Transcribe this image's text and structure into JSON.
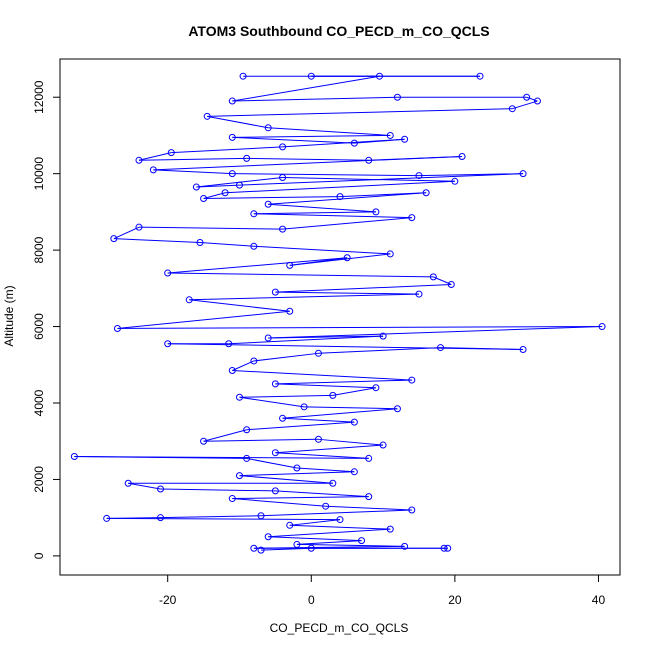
{
  "chart_data": {
    "type": "line",
    "title": "ATOM3 Southbound CO_PECD_m_CO_QCLS",
    "xlabel": "CO_PECD_m_CO_QCLS",
    "ylabel": "Altitude (m)",
    "xlim": [
      -35,
      43
    ],
    "ylim": [
      -500,
      13000
    ],
    "xticks": [
      -20,
      0,
      20,
      40
    ],
    "yticks": [
      0,
      2000,
      4000,
      6000,
      8000,
      10000,
      12000
    ],
    "xtick_labels": [
      "-20",
      "0",
      "20",
      "40"
    ],
    "ytick_labels": [
      "0",
      "2000",
      "4000",
      "6000",
      "8000",
      "10000",
      "12000"
    ],
    "grid": false,
    "legend": "none",
    "series": [
      {
        "color": "#0000ff",
        "marker": "open-circle",
        "points": [
          [
            -9.5,
            12550
          ],
          [
            23.5,
            12550
          ],
          [
            0,
            12550
          ],
          [
            9.5,
            12550
          ],
          [
            -11,
            11900
          ],
          [
            12,
            12000
          ],
          [
            30,
            12000
          ],
          [
            31.5,
            11900
          ],
          [
            28,
            11700
          ],
          [
            -14.5,
            11500
          ],
          [
            -6,
            11200
          ],
          [
            11,
            11000
          ],
          [
            -11,
            10950
          ],
          [
            6,
            10800
          ],
          [
            13,
            10900
          ],
          [
            -4,
            10700
          ],
          [
            -19.5,
            10550
          ],
          [
            -24,
            10350
          ],
          [
            -9,
            10400
          ],
          [
            8,
            10350
          ],
          [
            21,
            10450
          ],
          [
            -22,
            10100
          ],
          [
            -11,
            10000
          ],
          [
            15,
            9950
          ],
          [
            29.5,
            10000
          ],
          [
            -10,
            9700
          ],
          [
            -16,
            9650
          ],
          [
            -4,
            9900
          ],
          [
            20,
            9800
          ],
          [
            -12,
            9500
          ],
          [
            -15,
            9350
          ],
          [
            4,
            9400
          ],
          [
            16,
            9500
          ],
          [
            -6,
            9200
          ],
          [
            9,
            9000
          ],
          [
            -8,
            8950
          ],
          [
            14,
            8850
          ],
          [
            -4,
            8550
          ],
          [
            -24,
            8600
          ],
          [
            -27.5,
            8300
          ],
          [
            -15.5,
            8200
          ],
          [
            -8,
            8100
          ],
          [
            11,
            7900
          ],
          [
            -3,
            7600
          ],
          [
            5,
            7800
          ],
          [
            -20,
            7400
          ],
          [
            17,
            7300
          ],
          [
            19.5,
            7100
          ],
          [
            -5,
            6900
          ],
          [
            15,
            6850
          ],
          [
            -17,
            6700
          ],
          [
            -3,
            6400
          ],
          [
            -27,
            5950
          ],
          [
            40.5,
            6000
          ],
          [
            -6,
            5700
          ],
          [
            10,
            5750
          ],
          [
            -11.5,
            5550
          ],
          [
            -20,
            5550
          ],
          [
            29.5,
            5400
          ],
          [
            18,
            5450
          ],
          [
            1,
            5300
          ],
          [
            -8,
            5100
          ],
          [
            -11,
            4850
          ],
          [
            14,
            4600
          ],
          [
            -5,
            4500
          ],
          [
            9,
            4400
          ],
          [
            3,
            4200
          ],
          [
            -10,
            4150
          ],
          [
            -1,
            3900
          ],
          [
            12,
            3850
          ],
          [
            -4,
            3600
          ],
          [
            6,
            3500
          ],
          [
            -9,
            3300
          ],
          [
            -15,
            3000
          ],
          [
            1,
            3050
          ],
          [
            10,
            2900
          ],
          [
            -5,
            2700
          ],
          [
            8,
            2550
          ],
          [
            -33,
            2600
          ],
          [
            -9,
            2550
          ],
          [
            -2,
            2300
          ],
          [
            6,
            2200
          ],
          [
            -10,
            2100
          ],
          [
            3,
            1900
          ],
          [
            -25.5,
            1900
          ],
          [
            -21,
            1750
          ],
          [
            -5,
            1700
          ],
          [
            8,
            1550
          ],
          [
            -11,
            1500
          ],
          [
            2,
            1300
          ],
          [
            14,
            1200
          ],
          [
            -7,
            1050
          ],
          [
            -21,
            1000
          ],
          [
            -28.5,
            980
          ],
          [
            4,
            950
          ],
          [
            -3,
            800
          ],
          [
            11,
            700
          ],
          [
            -6,
            500
          ],
          [
            7,
            400
          ],
          [
            -2,
            300
          ],
          [
            13,
            250
          ],
          [
            -8,
            200
          ],
          [
            18.5,
            200
          ],
          [
            19,
            200
          ],
          [
            0,
            200
          ],
          [
            -7,
            150
          ]
        ]
      }
    ]
  }
}
